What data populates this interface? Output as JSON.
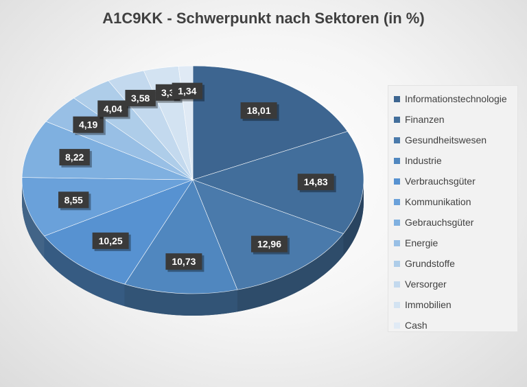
{
  "chart_data": {
    "type": "pie",
    "title": "A1C9KK - Schwerpunkt nach Sektoren (in %)",
    "categories": [
      "Informationstechnologie",
      "Finanzen",
      "Gesundheitswesen",
      "Industrie",
      "Verbrauchsgüter",
      "Kommunikation",
      "Gebrauchsgüter",
      "Energie",
      "Grundstoffe",
      "Versorger",
      "Immobilien",
      "Cash"
    ],
    "values": [
      18.01,
      14.83,
      12.96,
      10.73,
      10.25,
      8.55,
      8.22,
      4.19,
      4.04,
      3.58,
      3.3,
      1.34
    ],
    "data_labels": [
      "18,01",
      "14,83",
      "12,96",
      "10,73",
      "10,25",
      "8,55",
      "8,22",
      "4,19",
      "4,04",
      "3,58",
      "3,3",
      "1,34"
    ],
    "colors": [
      "#3d6590",
      "#426e9b",
      "#4a7aab",
      "#5087bf",
      "#5792d1",
      "#6aa1da",
      "#7fb0e0",
      "#98bfe5",
      "#aecde9",
      "#c3d9ee",
      "#d3e3f2",
      "#e0eaf5"
    ],
    "legend_position": "right"
  }
}
